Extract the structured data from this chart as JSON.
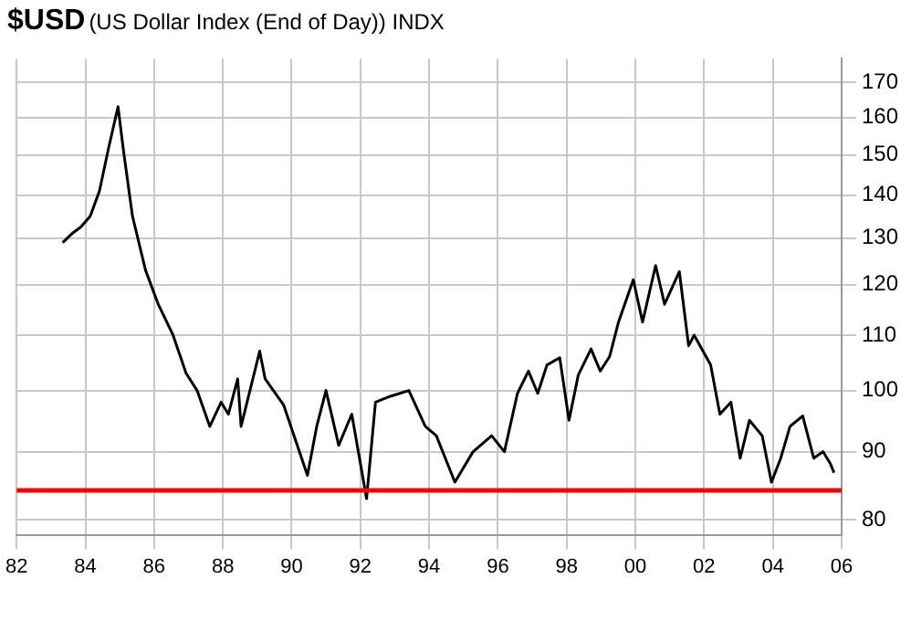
{
  "chart_data": {
    "type": "line",
    "title": "$USD",
    "subtitle": "(US Dollar Index (End of Day))  INDX",
    "series": [
      {
        "color": "#000000",
        "x": [
          1983.34,
          1983.61,
          1983.87,
          1984.14,
          1984.41,
          1984.68,
          1984.95,
          1985.11,
          1985.37,
          1985.75,
          1986.12,
          1986.55,
          1986.93,
          1987.25,
          1987.62,
          1987.95,
          1988.16,
          1988.43,
          1988.53,
          1989.07,
          1989.23,
          1989.77,
          1990.46,
          1990.73,
          1991.0,
          1991.37,
          1991.75,
          1992.18,
          1992.44,
          1992.87,
          1993.41,
          1993.89,
          1994.21,
          1994.75,
          1995.28,
          1995.82,
          1996.19,
          1996.57,
          1996.89,
          1997.16,
          1997.43,
          1997.8,
          1998.07,
          1998.34,
          1998.71,
          1998.98,
          1999.25,
          1999.51,
          1999.94,
          2000.21,
          2000.59,
          2000.85,
          2001.28,
          2001.55,
          2001.71,
          2002.19,
          2002.46,
          2002.78,
          2003.05,
          2003.32,
          2003.69,
          2003.96,
          2004.23,
          2004.5,
          2004.87,
          2005.19,
          2005.46,
          2005.67,
          2005.78
        ],
        "values": [
          129,
          131,
          132.5,
          135,
          141,
          152,
          163,
          151,
          135,
          123,
          116,
          110,
          103,
          100,
          94,
          98,
          96,
          102,
          94,
          107,
          102,
          97.5,
          86.4,
          94,
          100,
          91,
          96,
          83,
          98,
          99,
          100,
          94,
          92.5,
          85.4,
          90,
          92.5,
          90,
          99.5,
          103.4,
          99.5,
          104.5,
          105.8,
          95,
          102.7,
          107.4,
          103.4,
          106,
          112.5,
          121,
          112.5,
          124,
          116,
          122.7,
          108,
          110,
          104.5,
          96,
          98,
          89,
          95,
          92.5,
          85.4,
          89,
          94,
          95.7,
          89,
          90,
          88.2,
          86.8
        ]
      }
    ],
    "xlim": [
      1982,
      2006
    ],
    "xticks": [
      {
        "value": 1982,
        "label": "82"
      },
      {
        "value": 1984,
        "label": "84"
      },
      {
        "value": 1986,
        "label": "86"
      },
      {
        "value": 1988,
        "label": "88"
      },
      {
        "value": 1990,
        "label": "90"
      },
      {
        "value": 1992,
        "label": "92"
      },
      {
        "value": 1994,
        "label": "94"
      },
      {
        "value": 1996,
        "label": "96"
      },
      {
        "value": 1998,
        "label": "98"
      },
      {
        "value": 2000,
        "label": "00"
      },
      {
        "value": 2002,
        "label": "02"
      },
      {
        "value": 2004,
        "label": "04"
      },
      {
        "value": 2006,
        "label": "06"
      }
    ],
    "ylim": [
      78,
      177
    ],
    "yticks": [
      80,
      90,
      100,
      110,
      120,
      130,
      140,
      150,
      160,
      170
    ],
    "log": true,
    "grid": true,
    "ref_lines": [
      {
        "axis": "y",
        "value": 84.2,
        "color": "#ff0000"
      }
    ]
  }
}
